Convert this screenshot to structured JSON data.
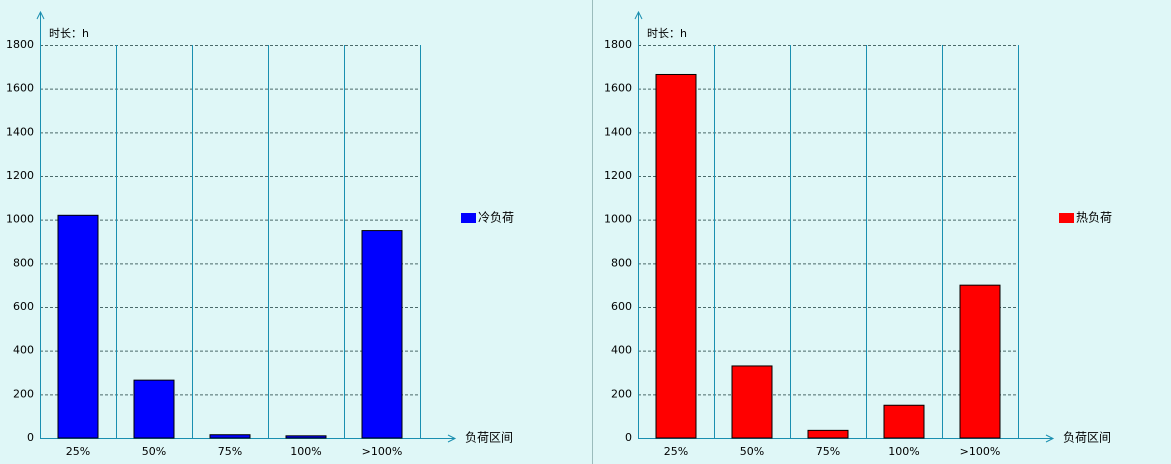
{
  "chart_data": [
    {
      "type": "bar",
      "y_label": "时长：h",
      "x_label": "负荷区间",
      "categories": [
        "25%",
        "50%",
        "75%",
        "100%",
        ">100%"
      ],
      "series": [
        {
          "name": "冷负荷",
          "color": "#0000ff",
          "values": [
            1020,
            265,
            15,
            10,
            950
          ]
        }
      ],
      "ylim": [
        0,
        1800
      ],
      "yticks": [
        0,
        200,
        400,
        600,
        800,
        1000,
        1200,
        1400,
        1600,
        1800
      ],
      "grid": true,
      "legend": "right"
    },
    {
      "type": "bar",
      "y_label": "时长：h",
      "x_label": "负荷区间",
      "categories": [
        "25%",
        "50%",
        "75%",
        "100%",
        ">100%"
      ],
      "series": [
        {
          "name": "热负荷",
          "color": "#ff0000",
          "values": [
            1665,
            330,
            35,
            150,
            700
          ]
        }
      ],
      "ylim": [
        0,
        1800
      ],
      "yticks": [
        0,
        200,
        400,
        600,
        800,
        1000,
        1200,
        1400,
        1600,
        1800
      ],
      "grid": true,
      "legend": "right"
    }
  ]
}
